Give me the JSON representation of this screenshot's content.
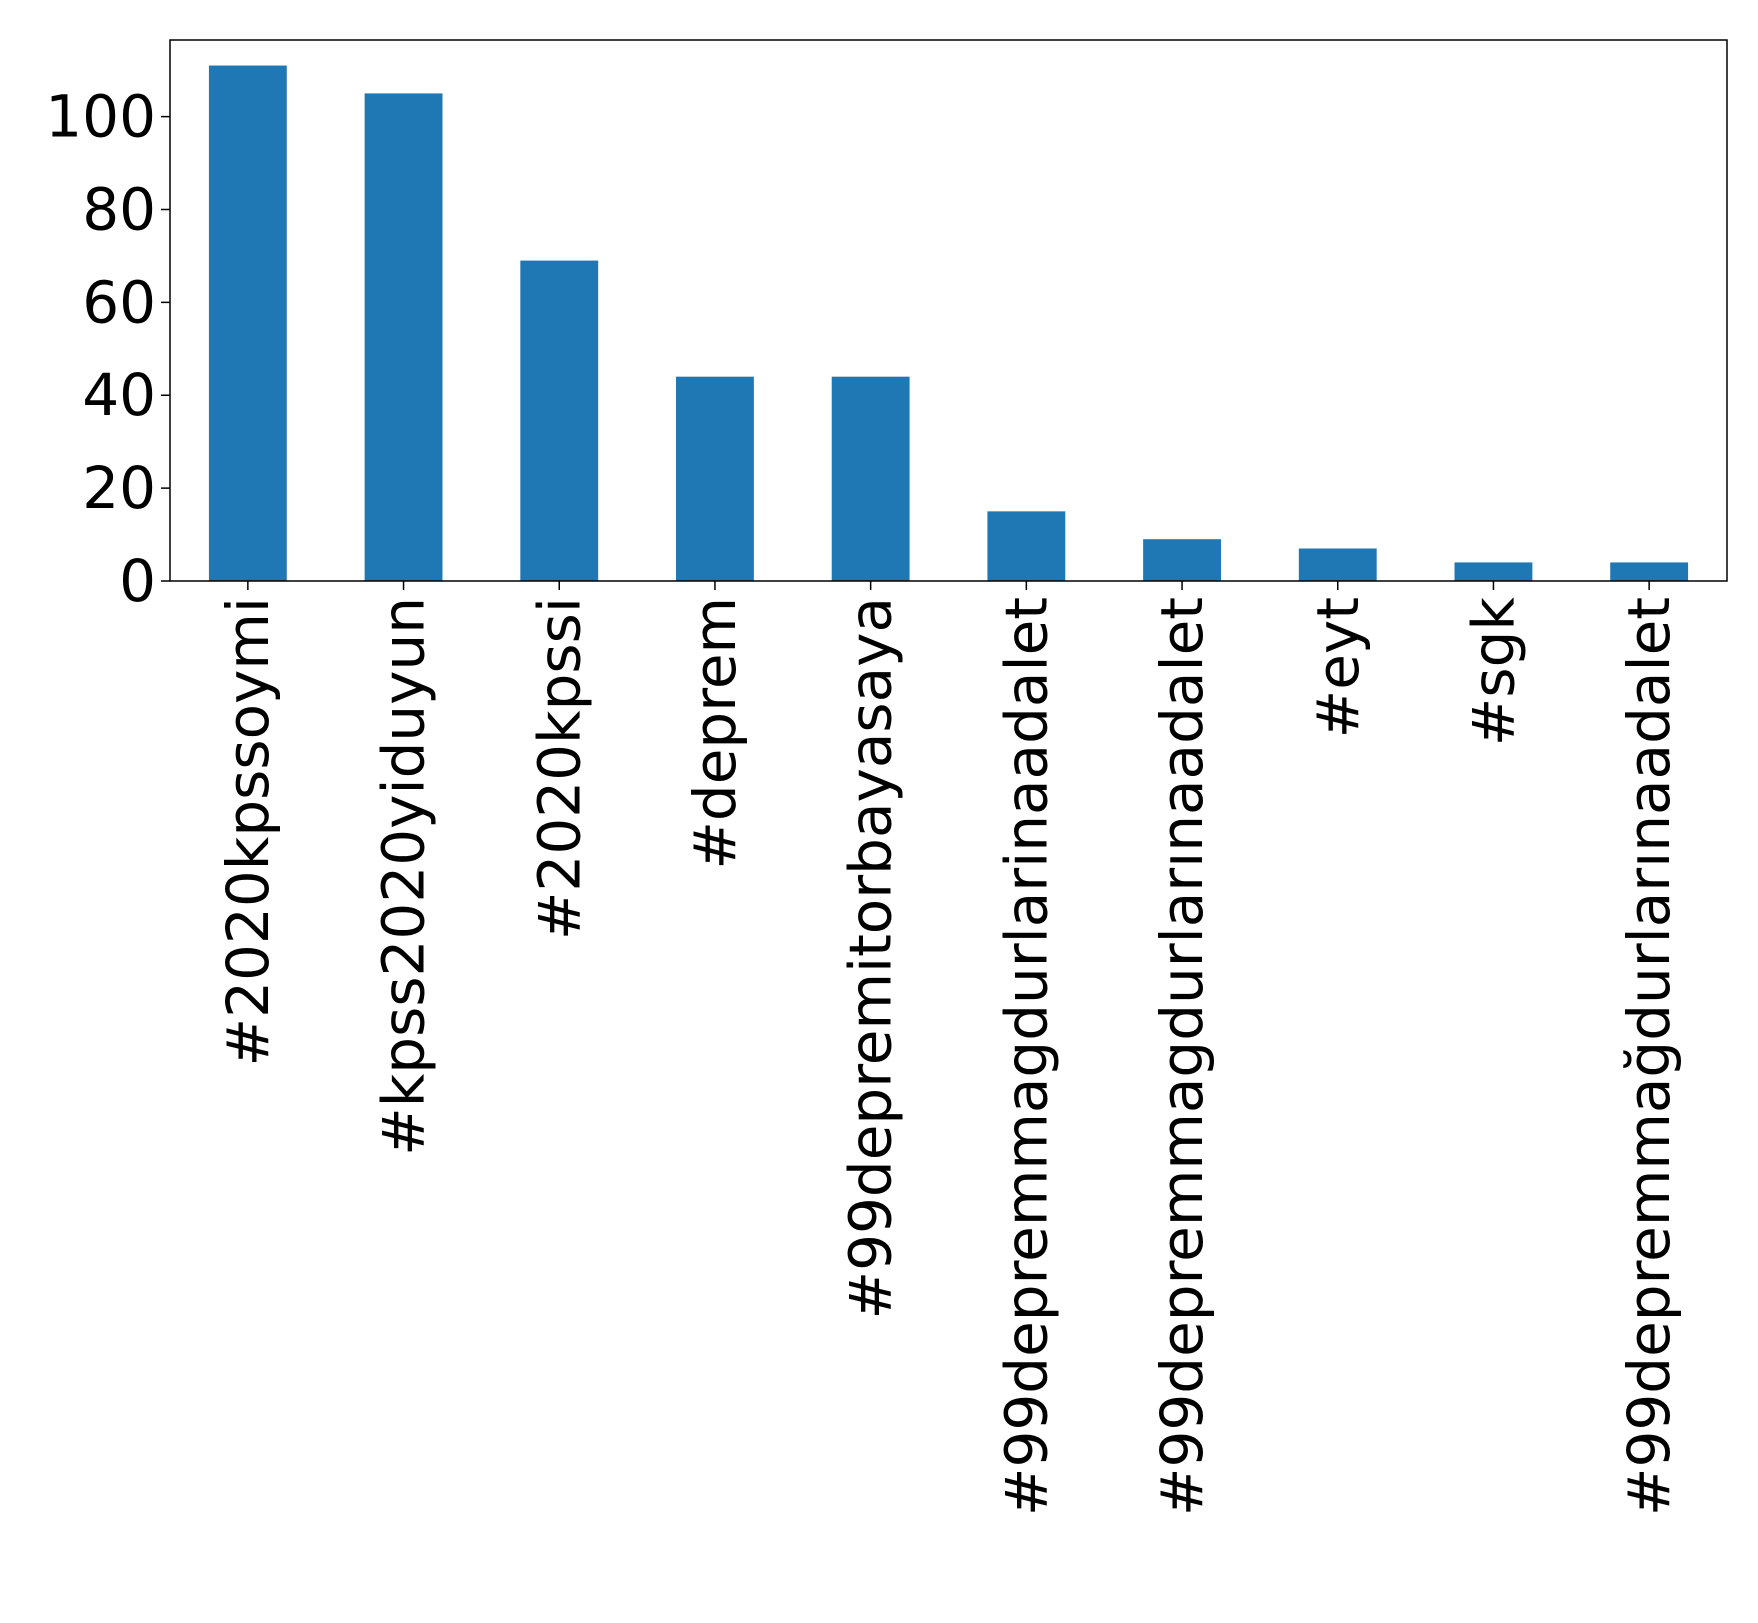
{
  "chart_data": {
    "type": "bar",
    "title": "",
    "xlabel": "",
    "ylabel": "",
    "categories": [
      "#2020kpssoymi",
      "#kpss2020yiduyun",
      "#2020kpssi",
      "#deprem",
      "#99depremitorbayasaya",
      "#99depremmagdurlarinaadalet",
      "#99depremmagdurlarınaadalet",
      "#eyt",
      "#sgk",
      "#99depremmağdurlarınaadalet"
    ],
    "values": [
      111,
      105,
      69,
      44,
      44,
      15,
      9,
      7,
      4,
      4
    ],
    "ylim": [
      0,
      116.5
    ],
    "yticks": [
      0,
      20,
      40,
      60,
      80,
      100
    ],
    "grid": false,
    "legend": "none",
    "bar_color": "#1f77b4"
  }
}
